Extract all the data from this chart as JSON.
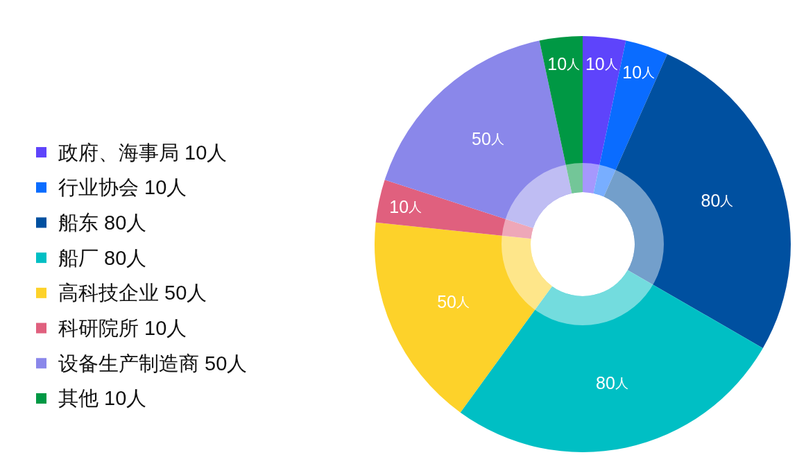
{
  "chart_data": {
    "type": "donut",
    "categories": [
      "政府、海事局",
      "行业协会",
      "船东",
      "船厂",
      "高科技企业",
      "科研院所",
      "设备生产制造商",
      "其他"
    ],
    "values": [
      10,
      10,
      80,
      80,
      50,
      10,
      50,
      10
    ],
    "colors": [
      "#5e44fb",
      "#0a6cff",
      "#0050a0",
      "#00bfc4",
      "#fdd22a",
      "#e0607e",
      "#8a87ea",
      "#009844"
    ],
    "value_labels": [
      "10人",
      "10人",
      "80人",
      "80人",
      "50人",
      "10人",
      "50人",
      "10人"
    ],
    "legend": "left"
  }
}
